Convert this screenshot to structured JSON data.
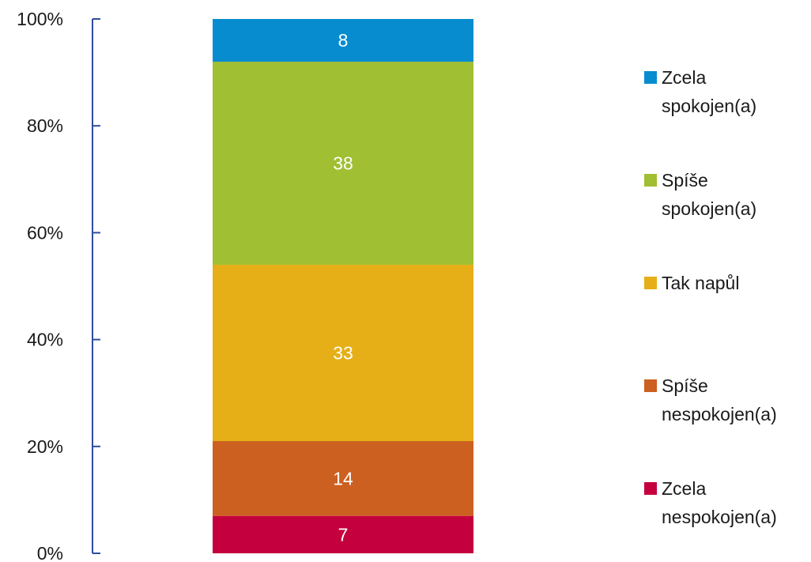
{
  "chart_data": {
    "type": "bar",
    "stacked": true,
    "percent_scale": true,
    "title": "",
    "xlabel": "",
    "ylabel": "",
    "ylim": [
      0,
      100
    ],
    "yticks": [
      "0%",
      "20%",
      "40%",
      "60%",
      "80%",
      "100%"
    ],
    "grid": false,
    "legend_position": "right",
    "categories": [
      ""
    ],
    "series": [
      {
        "name": "Zcela nespokojen(a)",
        "legend_lines": [
          "Zcela",
          "nespokojen(a)"
        ],
        "values": [
          7
        ],
        "label": "7",
        "color": "#C5003E"
      },
      {
        "name": "Spíše nespokojen(a)",
        "legend_lines": [
          "Spíše",
          "nespokojen(a)"
        ],
        "values": [
          14
        ],
        "label": "14",
        "color": "#CC6020"
      },
      {
        "name": "Tak napůl",
        "legend_lines": [
          "Tak napůl"
        ],
        "values": [
          33
        ],
        "label": "33",
        "color": "#E6AF17"
      },
      {
        "name": "Spíše spokojen(a)",
        "legend_lines": [
          "Spíše",
          "spokojen(a)"
        ],
        "values": [
          38
        ],
        "label": "38",
        "color": "#A0BF33"
      },
      {
        "name": "Zcela spokojen(a)",
        "legend_lines": [
          "Zcela",
          "spokojen(a)"
        ],
        "values": [
          8
        ],
        "label": "8",
        "color": "#068CCF"
      }
    ],
    "axis_color": "#2F4C9E"
  }
}
